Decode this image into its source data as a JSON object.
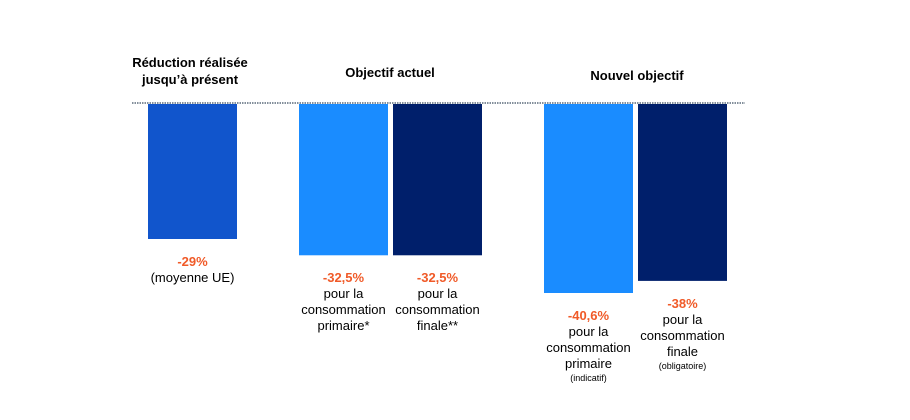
{
  "chart_data": {
    "type": "bar",
    "colors": {
      "realised": "#1155cc",
      "primary": "#1a8cff",
      "final": "#001f6b",
      "baseline": "#5a6a7a",
      "value_text": "#f05a28"
    },
    "groups": [
      {
        "title_line1": "Réduction réalisée",
        "title_line2": "jusqu’à présent",
        "bars": [
          {
            "value": -29,
            "color_key": "realised",
            "pct": "-29%",
            "desc": "(moyenne UE)",
            "note": ""
          }
        ]
      },
      {
        "title_line1": "Objectif actuel",
        "title_line2": "",
        "bars": [
          {
            "value": -32.5,
            "color_key": "primary",
            "pct": "-32,5%",
            "desc": "pour la consommation primaire*",
            "note": ""
          },
          {
            "value": -32.5,
            "color_key": "final",
            "pct": "-32,5%",
            "desc": "pour la consommation finale**",
            "note": ""
          }
        ]
      },
      {
        "title_line1": "Nouvel objectif",
        "title_line2": "",
        "bars": [
          {
            "value": -40.6,
            "color_key": "primary",
            "pct": "-40,6%",
            "desc": "pour la consommation primaire",
            "note": "(indicatif)"
          },
          {
            "value": -38,
            "color_key": "final",
            "pct": "-38%",
            "desc": "pour la consommation finale",
            "note": "(obligatoire)"
          }
        ]
      }
    ]
  }
}
